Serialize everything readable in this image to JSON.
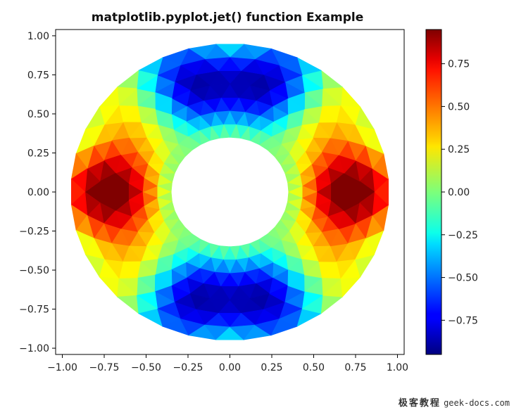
{
  "chart_data": {
    "type": "heatmap",
    "title": "matplotlib.pyplot.jet() function Example",
    "xlabel": "",
    "ylabel": "",
    "xlim": [
      -1.04,
      1.04
    ],
    "ylim": [
      -1.04,
      1.04
    ],
    "x_ticks": [
      "−1.00",
      "−0.75",
      "−0.50",
      "−0.25",
      "0.00",
      "0.25",
      "0.50",
      "0.75",
      "1.00"
    ],
    "y_ticks": [
      "−1.00",
      "−0.75",
      "−0.50",
      "−0.25",
      "0.00",
      "0.25",
      "0.50",
      "0.75",
      "1.00"
    ],
    "annulus": {
      "inner_radius": 0.35,
      "outer_radius": 0.95
    },
    "colormap": "jet",
    "colorbar": {
      "vmin": -0.95,
      "vmax": 0.95,
      "ticks": [
        -0.75,
        -0.5,
        -0.25,
        0.0,
        0.25,
        0.5,
        0.75
      ],
      "tick_labels": [
        "−0.75",
        "−0.50",
        "−0.25",
        "0.00",
        "0.25",
        "0.50",
        "0.75"
      ]
    },
    "grid": false
  },
  "watermark": {
    "cn": "极客教程",
    "site": "geek-docs.com"
  }
}
